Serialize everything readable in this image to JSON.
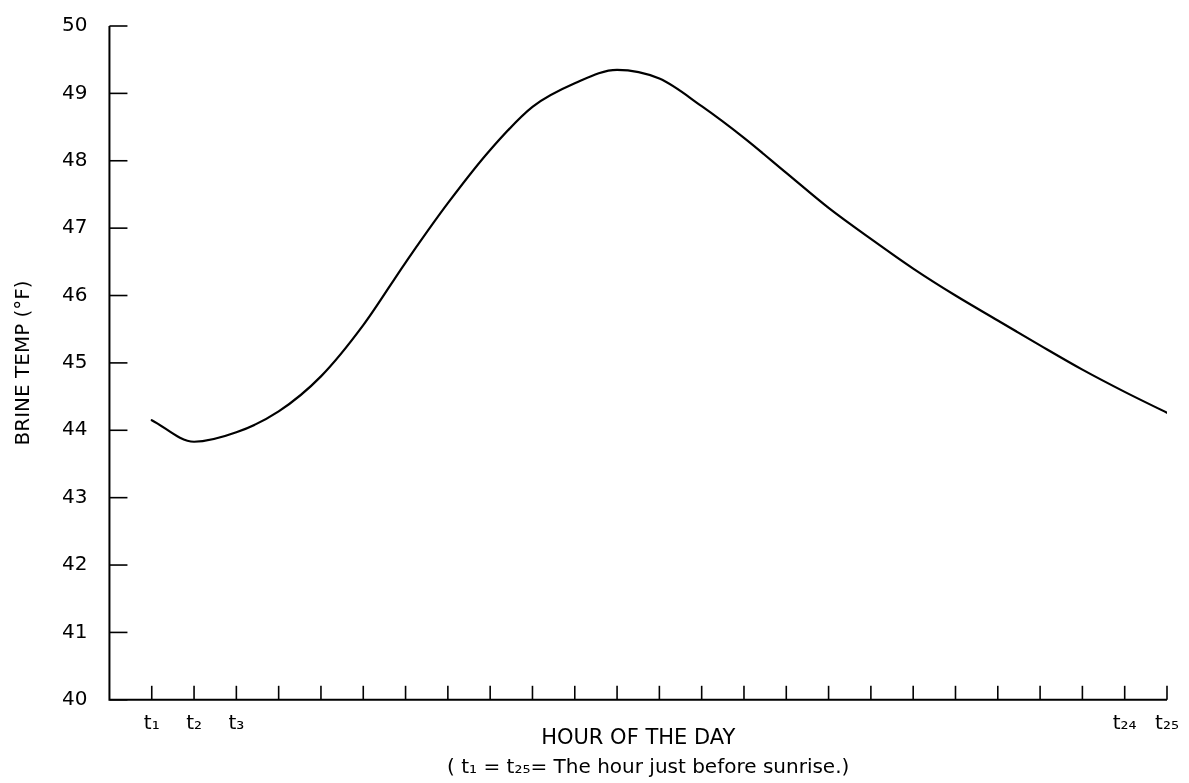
{
  "chart_data": {
    "type": "line",
    "xlabel": "HOUR OF THE DAY",
    "ylabel": "BRINE TEMP (°F)",
    "annotations": [
      "( t₁ = t₂₅= The hour just before sunrise.)"
    ],
    "categories": [
      "t₁",
      "t₂",
      "t₃",
      null,
      null,
      null,
      null,
      null,
      null,
      null,
      null,
      null,
      null,
      null,
      null,
      null,
      null,
      null,
      null,
      null,
      null,
      null,
      null,
      "t₂₄",
      "t₂₅"
    ],
    "series": [
      {
        "color": "#000000",
        "values": [
          44.15,
          43.83,
          43.97,
          44.28,
          44.8,
          45.56,
          46.49,
          47.37,
          48.16,
          48.8,
          49.15,
          49.35,
          49.22,
          48.81,
          48.34,
          47.82,
          47.3,
          46.84,
          46.4,
          46.0,
          45.63,
          45.26,
          44.9,
          44.57,
          44.26
        ]
      }
    ],
    "ylim": [
      40,
      50
    ],
    "yticks": [
      40,
      41,
      42,
      43,
      44,
      45,
      46,
      47,
      48,
      49,
      50
    ],
    "grid": false,
    "legend": false,
    "marker": "none",
    "line_style": "solid"
  }
}
